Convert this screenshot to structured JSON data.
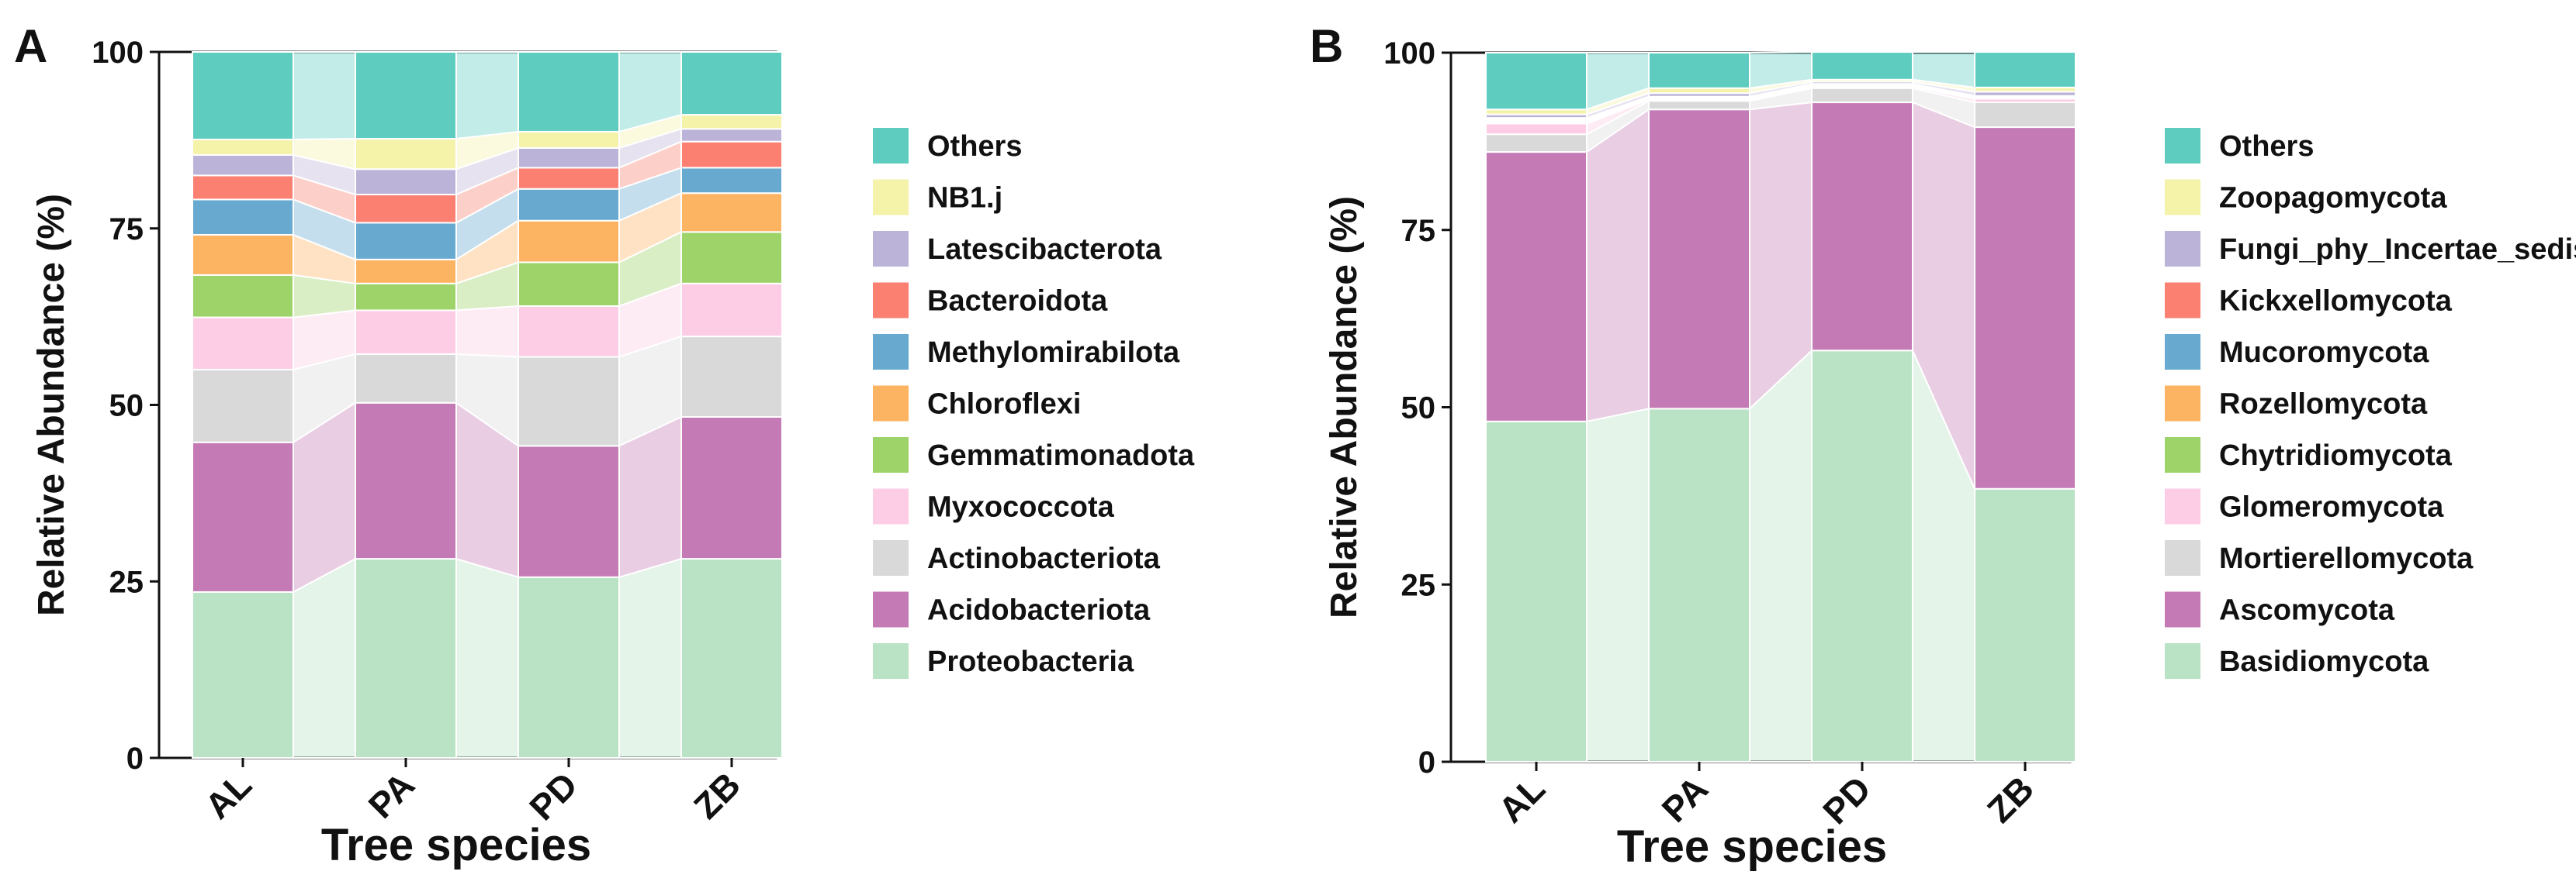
{
  "chart_data": [
    {
      "panel": "A",
      "type": "bar",
      "stacked": true,
      "title": "",
      "xlabel": "Tree species",
      "ylabel": "Relative Abundance (%)",
      "ylim": [
        0,
        100
      ],
      "yticks": [
        "0",
        "25",
        "50",
        "75",
        "100"
      ],
      "categories": [
        "AL",
        "PA",
        "PD",
        "ZB"
      ],
      "legend_position": "right",
      "series": [
        {
          "name": "Proteobacteria",
          "color": "#b9e3c4",
          "values": [
            23.5,
            28.2,
            25.6,
            28.2
          ]
        },
        {
          "name": "Acidobacteriota",
          "color": "#c47bb5",
          "values": [
            21.2,
            22.1,
            18.6,
            20.1
          ]
        },
        {
          "name": "Actinobacteriota",
          "color": "#d9d9d9",
          "values": [
            10.3,
            6.9,
            12.6,
            11.4
          ]
        },
        {
          "name": "Myxococcota",
          "color": "#fccde5",
          "values": [
            7.4,
            6.2,
            7.2,
            7.5
          ]
        },
        {
          "name": "Gemmatimonadota",
          "color": "#9ed36a",
          "values": [
            6.0,
            3.8,
            6.2,
            7.3
          ]
        },
        {
          "name": "Chloroflexi",
          "color": "#fdb462",
          "values": [
            5.7,
            3.4,
            5.9,
            5.5
          ]
        },
        {
          "name": "Methylomirabilota",
          "color": "#67a9cf",
          "values": [
            5.0,
            5.2,
            4.5,
            3.6
          ]
        },
        {
          "name": "Bacteroidota",
          "color": "#fb8072",
          "values": [
            3.4,
            4.0,
            3.0,
            3.7
          ]
        },
        {
          "name": "Latescibacterota",
          "color": "#bcb4d8",
          "values": [
            2.9,
            3.6,
            2.8,
            1.8
          ]
        },
        {
          "name": "NB1.j",
          "color": "#f5f2a9",
          "values": [
            2.2,
            4.3,
            2.3,
            2.0
          ]
        },
        {
          "name": "Others",
          "color": "#5ecdbf",
          "values": [
            12.4,
            12.3,
            11.3,
            8.9
          ]
        }
      ]
    },
    {
      "panel": "B",
      "type": "bar",
      "stacked": true,
      "title": "",
      "xlabel": "Tree species",
      "ylabel": "Relative Abundance (%)",
      "ylim": [
        0,
        100
      ],
      "yticks": [
        "0",
        "25",
        "50",
        "75",
        "100"
      ],
      "categories": [
        "AL",
        "PA",
        "PD",
        "ZB"
      ],
      "legend_position": "right",
      "series": [
        {
          "name": "Basidiomycota",
          "color": "#b9e3c4",
          "values": [
            48.0,
            49.8,
            58.0,
            38.5
          ]
        },
        {
          "name": "Ascomycota",
          "color": "#c47bb5",
          "values": [
            38.0,
            42.2,
            35.0,
            51.0
          ]
        },
        {
          "name": "Mortierellomycota",
          "color": "#d9d9d9",
          "values": [
            2.5,
            1.2,
            2.0,
            3.5
          ]
        },
        {
          "name": "Glomeromycota",
          "color": "#fccde5",
          "values": [
            1.5,
            0.2,
            0.2,
            0.5
          ]
        },
        {
          "name": "Chytridiomycota",
          "color": "#9ed36a",
          "values": [
            0.2,
            0.1,
            0.1,
            0.1
          ]
        },
        {
          "name": "Rozellomycota",
          "color": "#fdb462",
          "values": [
            0.2,
            0.1,
            0.1,
            0.1
          ]
        },
        {
          "name": "Mucoromycota",
          "color": "#67a9cf",
          "values": [
            0.2,
            0.1,
            0.1,
            0.1
          ]
        },
        {
          "name": "Kickxellomycota",
          "color": "#fb8072",
          "values": [
            0.2,
            0.1,
            0.1,
            0.1
          ]
        },
        {
          "name": "Fungi_phy_Incertae_sedis",
          "color": "#bcb4d8",
          "values": [
            0.5,
            0.5,
            0.3,
            0.6
          ]
        },
        {
          "name": "Zoopagomycota",
          "color": "#f5f2a9",
          "values": [
            0.7,
            0.7,
            0.3,
            0.6
          ]
        },
        {
          "name": "Others",
          "color": "#5ecdbf",
          "values": [
            8.0,
            5.0,
            3.9,
            5.0
          ]
        }
      ]
    }
  ]
}
